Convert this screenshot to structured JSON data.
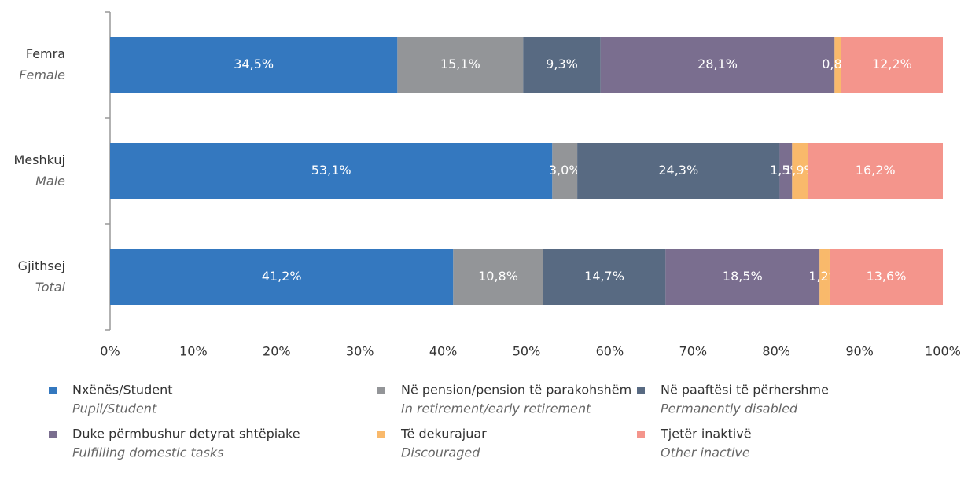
{
  "chart_data": {
    "type": "stacked_bar_horizontal",
    "categories": [
      "Femra",
      "Meshkuj",
      "Gjithsej"
    ],
    "categories_en": [
      "Female",
      "Male",
      "Total"
    ],
    "series": [
      {
        "name": "Nxënës/Student",
        "name_en": "Pupil/Student",
        "color": "#3478bf",
        "values": [
          34.5,
          53.1,
          41.2
        ],
        "value_labels": [
          "34,5%",
          "53,1%",
          "41,2%"
        ]
      },
      {
        "name": "Në pension/pension të parakohshëm",
        "name_en": "In retirement/early retirement",
        "color": "#939598",
        "values": [
          15.1,
          3.0,
          10.8
        ],
        "value_labels": [
          "15,1%",
          "3,0%",
          "10,8%"
        ]
      },
      {
        "name": "Në paaftësi të përhershme",
        "name_en": "Permanently disabled",
        "color": "#586a82",
        "values": [
          9.3,
          24.3,
          14.7
        ],
        "value_labels": [
          "9,3%",
          "24,3%",
          "14,7%"
        ]
      },
      {
        "name": "Duke përmbushur detyrat shtëpiake",
        "name_en": "Fulfilling domestic tasks",
        "color": "#7a6e8f",
        "values": [
          28.1,
          1.5,
          18.5
        ],
        "value_labels": [
          "28,1%",
          "1,5%",
          "18,5%"
        ]
      },
      {
        "name": "Të dekurajuar",
        "name_en": "Discouraged",
        "color": "#f9b96b",
        "values": [
          0.8,
          1.9,
          1.2
        ],
        "value_labels": [
          "0,8%",
          "1,9%",
          "1,2%"
        ]
      },
      {
        "name": "Tjetër inaktivë",
        "name_en": "Other inactive",
        "color": "#f4958c",
        "values": [
          12.2,
          16.2,
          13.6
        ],
        "value_labels": [
          "12,2%",
          "16,2%",
          "13,6%"
        ]
      }
    ],
    "xlim": [
      0,
      100
    ],
    "xticks": [
      {
        "value": 0,
        "label": "0%"
      },
      {
        "value": 10,
        "label": "10%"
      },
      {
        "value": 20,
        "label": "20%"
      },
      {
        "value": 30,
        "label": "30%"
      },
      {
        "value": 40,
        "label": "40%"
      },
      {
        "value": 50,
        "label": "50%"
      },
      {
        "value": 60,
        "label": "60%"
      },
      {
        "value": 70,
        "label": "70%"
      },
      {
        "value": 80,
        "label": "80%"
      },
      {
        "value": 90,
        "label": "90%"
      },
      {
        "value": 100,
        "label": "100%"
      }
    ],
    "legend": "bottom"
  }
}
